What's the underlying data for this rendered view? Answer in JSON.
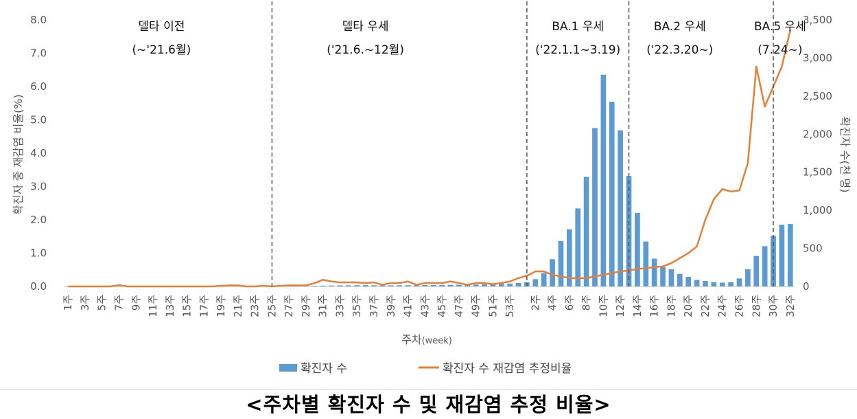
{
  "chart_data": {
    "type": "bar+line",
    "title": "",
    "xlabel": "주차",
    "xlabel_unit": "(week)",
    "ylabel_left": "확진자 중 재감염 비율(%)",
    "ylabel_right": "확진자 수(천 명)",
    "ylim_left": [
      0,
      8
    ],
    "ylim_right": [
      0,
      3500
    ],
    "yticks_left": [
      "0.0",
      "1.0",
      "2.0",
      "3.0",
      "4.0",
      "5.0",
      "6.0",
      "7.0",
      "8.0"
    ],
    "yticks_right": [
      "0",
      "500",
      "1,000",
      "1,500",
      "2,000",
      "2,500",
      "3,000",
      "3,500"
    ],
    "week_suffix": "주",
    "weeks": [
      1,
      2,
      3,
      4,
      5,
      6,
      7,
      8,
      9,
      10,
      11,
      12,
      13,
      14,
      15,
      16,
      17,
      18,
      19,
      20,
      21,
      22,
      23,
      24,
      25,
      26,
      27,
      28,
      29,
      30,
      31,
      32,
      33,
      34,
      35,
      36,
      37,
      38,
      39,
      40,
      41,
      42,
      43,
      44,
      45,
      46,
      47,
      48,
      49,
      50,
      51,
      52,
      53,
      54,
      1,
      2,
      3,
      4,
      5,
      6,
      7,
      8,
      9,
      10,
      11,
      12,
      13,
      14,
      15,
      16,
      17,
      18,
      19,
      20,
      21,
      22,
      23,
      24,
      25,
      26,
      27,
      28,
      29,
      30,
      31,
      32
    ],
    "labeled_indices": [
      0,
      2,
      4,
      6,
      8,
      10,
      12,
      14,
      16,
      18,
      20,
      22,
      24,
      26,
      28,
      30,
      32,
      34,
      36,
      38,
      40,
      42,
      44,
      46,
      48,
      50,
      52,
      55,
      57,
      59,
      61,
      63,
      65,
      67,
      69,
      71,
      73,
      75,
      77,
      79,
      81,
      83,
      85
    ],
    "legend": [
      "확진자 수",
      "확진자 수 재감염 추정비율"
    ],
    "bar_color": "#5b9bd5",
    "line_color": "#ed7d31",
    "series": [
      {
        "name": "확진자 수",
        "axis": "right",
        "kind": "bar",
        "values": [
          3,
          3,
          3,
          3,
          3,
          3,
          3,
          3,
          3,
          3,
          3,
          3,
          3,
          3,
          3,
          3,
          3,
          3,
          3,
          3,
          3,
          3,
          3,
          3,
          4,
          5,
          6,
          6,
          7,
          8,
          10,
          12,
          14,
          15,
          16,
          17,
          15,
          14,
          14,
          15,
          16,
          17,
          18,
          19,
          20,
          21,
          22,
          22,
          25,
          28,
          30,
          33,
          38,
          45,
          55,
          95,
          175,
          358,
          595,
          750,
          1025,
          1438,
          2080,
          2780,
          2425,
          2050,
          1450,
          965,
          590,
          365,
          255,
          225,
          165,
          125,
          85,
          72,
          55,
          50,
          55,
          105,
          225,
          400,
          528,
          665,
          810,
          820
        ]
      },
      {
        "name": "확진자 수 재감염 추정비율",
        "axis": "left",
        "kind": "line",
        "values": [
          0.0,
          0.0,
          0.0,
          0.0,
          0.0,
          0.0,
          0.04,
          0.0,
          0.0,
          0.0,
          0.0,
          0.0,
          0.0,
          0.0,
          0.0,
          0.0,
          0.0,
          0.0,
          0.02,
          0.03,
          0.03,
          0.0,
          0.0,
          0.02,
          0.0,
          0.02,
          0.03,
          0.03,
          0.03,
          0.1,
          0.2,
          0.15,
          0.12,
          0.12,
          0.12,
          0.1,
          0.12,
          0.05,
          0.1,
          0.1,
          0.15,
          0.05,
          0.1,
          0.1,
          0.1,
          0.15,
          0.1,
          0.05,
          0.1,
          0.1,
          0.07,
          0.1,
          0.15,
          0.25,
          0.32,
          0.45,
          0.45,
          0.35,
          0.3,
          0.25,
          0.25,
          0.25,
          0.3,
          0.35,
          0.4,
          0.45,
          0.48,
          0.52,
          0.55,
          0.58,
          0.6,
          0.7,
          0.85,
          1.0,
          1.2,
          2.0,
          2.62,
          2.92,
          2.85,
          2.88,
          3.7,
          6.6,
          5.4,
          6.0,
          6.6,
          7.7
        ]
      }
    ],
    "era_dividers": [
      24.5,
      54.5,
      66.5,
      83.5
    ],
    "annotations": [
      {
        "line1": "델타 이전",
        "line2": "(~'21.6월)",
        "at": 11.5
      },
      {
        "line1": "델타 우세",
        "line2": "('21.6.~12월)",
        "at": 35.5
      },
      {
        "line1": "BA.1 우세",
        "line2": "('22.1.1~3.19)",
        "at": 60.5
      },
      {
        "line1": "BA.2 우세",
        "line2": "('22.3.20~)",
        "at": 72.5
      },
      {
        "line1": "BA.5 우세",
        "line2": "(7.24~)",
        "at": 84.3
      }
    ]
  },
  "caption": "<주차별 확진자 수 및 재감염 추정 비율>"
}
